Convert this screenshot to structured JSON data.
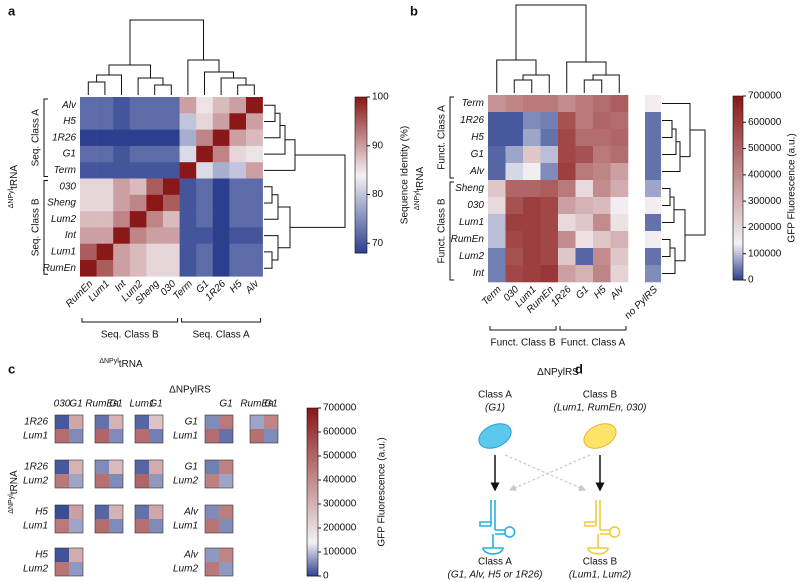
{
  "chart_data": [
    {
      "type": "heatmap",
      "panel": "a",
      "rows": [
        "Alv",
        "H5",
        "1R26",
        "G1",
        "Term",
        "030",
        "Sheng",
        "Lum2",
        "Int",
        "Lum1",
        "RumEn"
      ],
      "columns": [
        "RumEn",
        "Lum1",
        "Int",
        "Lum2",
        "Sheng",
        "030",
        "Term",
        "G1",
        "1R26",
        "H5",
        "Alv"
      ],
      "values": [
        [
          72,
          72,
          70,
          72,
          72,
          72,
          90,
          85,
          88,
          90,
          100
        ],
        [
          72,
          72,
          70,
          72,
          72,
          72,
          80,
          86,
          90,
          100,
          90
        ],
        [
          68,
          68,
          66,
          68,
          68,
          68,
          78,
          92,
          100,
          90,
          88
        ],
        [
          72,
          72,
          70,
          72,
          72,
          72,
          82,
          100,
          92,
          86,
          85
        ],
        [
          70,
          70,
          70,
          70,
          70,
          70,
          100,
          82,
          78,
          80,
          90
        ],
        [
          86,
          86,
          90,
          88,
          95,
          100,
          70,
          72,
          68,
          72,
          72
        ],
        [
          86,
          86,
          90,
          92,
          100,
          95,
          70,
          72,
          68,
          72,
          72
        ],
        [
          88,
          88,
          92,
          100,
          92,
          88,
          70,
          72,
          68,
          72,
          72
        ],
        [
          90,
          90,
          100,
          92,
          90,
          90,
          70,
          70,
          66,
          70,
          70
        ],
        [
          95,
          100,
          90,
          88,
          86,
          86,
          70,
          72,
          68,
          72,
          72
        ],
        [
          100,
          95,
          90,
          88,
          86,
          86,
          70,
          72,
          68,
          72,
          72
        ]
      ],
      "row_groups": [
        {
          "label": "Seq. Class A",
          "members": [
            "Alv",
            "H5",
            "1R26",
            "G1",
            "Term"
          ]
        },
        {
          "label": "Seq. Class B",
          "members": [
            "030",
            "Sheng",
            "Lum2",
            "Int",
            "Lum1",
            "RumEn"
          ]
        }
      ],
      "column_groups": [
        {
          "label": "Seq. Class B",
          "members": [
            "RumEn",
            "Lum1",
            "Int",
            "Lum2",
            "Sheng",
            "030"
          ]
        },
        {
          "label": "Seq. Class A",
          "members": [
            "Term",
            "G1",
            "1R26",
            "H5",
            "Alv"
          ]
        }
      ],
      "ylabel": {
        "sup": "ΔNPyl",
        "main": "tRNA"
      },
      "xlabel": {
        "sup": "ΔNPyl",
        "main": "tRNA"
      },
      "colorbar": {
        "label": "Sequence Identity (%)",
        "lim": [
          68,
          100
        ],
        "ticks": [
          70,
          80,
          90,
          100
        ],
        "colors": [
          [
            0,
            "#2b3f8e"
          ],
          [
            0.5,
            "#f3f1f4"
          ],
          [
            1,
            "#8a1818"
          ]
        ]
      }
    },
    {
      "type": "heatmap",
      "panel": "b",
      "rows": [
        "Term",
        "1R26",
        "H5",
        "G1",
        "Alv",
        "Sheng",
        "030",
        "Lum1",
        "RumEn",
        "Lum2",
        "Int"
      ],
      "columns": [
        "Term",
        "030",
        "Lum1",
        "RumEn",
        "1R26",
        "G1",
        "H5",
        "Alv"
      ],
      "values": [
        [
          380000,
          420000,
          450000,
          450000,
          400000,
          450000,
          480000,
          520000
        ],
        [
          20000,
          20000,
          60000,
          50000,
          550000,
          450000,
          500000,
          480000
        ],
        [
          20000,
          20000,
          80000,
          40000,
          580000,
          480000,
          480000,
          500000
        ],
        [
          30000,
          80000,
          250000,
          100000,
          580000,
          550000,
          450000,
          480000
        ],
        [
          30000,
          120000,
          150000,
          60000,
          600000,
          450000,
          420000,
          350000
        ],
        [
          250000,
          500000,
          500000,
          520000,
          450000,
          200000,
          400000,
          320000
        ],
        [
          200000,
          550000,
          600000,
          580000,
          350000,
          300000,
          280000,
          150000
        ],
        [
          100000,
          600000,
          600000,
          580000,
          200000,
          250000,
          400000,
          180000
        ],
        [
          100000,
          580000,
          600000,
          580000,
          400000,
          180000,
          250000,
          300000
        ],
        [
          50000,
          550000,
          600000,
          580000,
          250000,
          30000,
          400000,
          250000
        ],
        [
          50000,
          580000,
          600000,
          620000,
          350000,
          300000,
          420000,
          220000
        ]
      ],
      "control": {
        "label": "no PylRS",
        "values": [
          150000,
          40000,
          40000,
          40000,
          40000,
          80000,
          150000,
          40000,
          150000,
          40000,
          60000
        ]
      },
      "row_groups": [
        {
          "label": "Funct. Class A",
          "members": [
            "Term",
            "1R26",
            "H5",
            "G1",
            "Alv"
          ]
        },
        {
          "label": "Funct. Class B",
          "members": [
            "Sheng",
            "030",
            "Lum1",
            "RumEn",
            "Lum2",
            "Int"
          ]
        }
      ],
      "column_groups": [
        {
          "label": "Funct. Class B",
          "members": [
            "Term",
            "030",
            "Lum1",
            "RumEn"
          ]
        },
        {
          "label": "Funct. Class A",
          "members": [
            "1R26",
            "G1",
            "H5",
            "Alv"
          ]
        }
      ],
      "ylabel": {
        "sup": "ΔNPyl",
        "main": "tRNA"
      },
      "xlabel": {
        "sup": "",
        "main": "ΔNPylRS"
      },
      "colorbar": {
        "label": "GFP Fluorescence (a.u.)",
        "lim": [
          0,
          700000
        ],
        "ticks": [
          0,
          100000,
          200000,
          300000,
          400000,
          500000,
          600000,
          700000
        ],
        "colors": [
          [
            0,
            "#2b3f8e"
          ],
          [
            0.2,
            "#f3f1f4"
          ],
          [
            1,
            "#8a1818"
          ]
        ]
      }
    },
    {
      "type": "heatmap-grid",
      "panel": "c",
      "title": "ΔNPylRS",
      "ylabel": {
        "sup": "ΔNPyl",
        "main": "tRNA"
      },
      "sides": [
        {
          "rows": [
            [
              "1R26",
              "Lum1"
            ],
            [
              "1R26",
              "Lum2"
            ],
            [
              "H5",
              "Lum1"
            ],
            [
              "H5",
              "Lum2"
            ]
          ],
          "cols": [
            [
              "030",
              "G1"
            ],
            [
              "RumEn",
              "G1"
            ],
            [
              "Lum1",
              "G1"
            ]
          ],
          "cells": [
            [
              [
                [
                  20000,
                  330000
                ],
                [
                  480000,
                  60000
                ]
              ],
              [
                [
                  40000,
                  300000
                ],
                [
                  500000,
                  60000
                ]
              ],
              [
                [
                  30000,
                  260000
                ],
                [
                  480000,
                  50000
                ]
              ]
            ],
            [
              [
                [
                  20000,
                  300000
                ],
                [
                  450000,
                  80000
                ]
              ],
              [
                [
                  60000,
                  280000
                ],
                [
                  470000,
                  60000
                ]
              ],
              [
                [
                  30000,
                  320000
                ],
                [
                  500000,
                  70000
                ]
              ]
            ],
            [
              [
                [
                  10000,
                  350000
                ],
                [
                  450000,
                  80000
                ]
              ],
              [
                [
                  30000,
                  300000
                ],
                [
                  480000,
                  60000
                ]
              ],
              [
                [
                  40000,
                  330000
                ],
                [
                  470000,
                  60000
                ]
              ]
            ],
            [
              [
                [
                  15000,
                  320000
                ],
                [
                  460000,
                  70000
                ]
              ],
              null,
              null
            ]
          ]
        },
        {
          "rows": [
            [
              "G1",
              "Lum1"
            ],
            [
              "G1",
              "Lum2"
            ],
            [
              "Alv",
              "Lum1"
            ],
            [
              "Alv",
              "Lum2"
            ]
          ],
          "cols": [
            [
              null,
              "G1"
            ],
            [
              "RumEn",
              "G1"
            ]
          ],
          "cells": [
            [
              [
                [
                  60000,
                  450000
                ],
                [
                  480000,
                  40000
                ]
              ],
              [
                [
                  80000,
                  420000
                ],
                [
                  470000,
                  60000
                ]
              ]
            ],
            [
              [
                [
                  50000,
                  430000
                ],
                [
                  430000,
                  80000
                ]
              ],
              null
            ],
            [
              [
                [
                  60000,
                  440000
                ],
                [
                  460000,
                  60000
                ]
              ],
              null
            ],
            [
              [
                [
                  70000,
                  420000
                ],
                [
                  450000,
                  70000
                ]
              ],
              null
            ]
          ]
        }
      ],
      "colorbar": {
        "label": "GFP Fluorescence (a.u.)",
        "lim": [
          0,
          700000
        ],
        "ticks": [
          0,
          100000,
          200000,
          300000,
          400000,
          500000,
          600000,
          700000
        ],
        "colors": [
          [
            0,
            "#2b3f8e"
          ],
          [
            0.2,
            "#f3f1f4"
          ],
          [
            1,
            "#8a1818"
          ]
        ]
      }
    }
  ],
  "diagram": {
    "panel": "d",
    "nodes": [
      {
        "label": "Class A",
        "detail": "(G1)"
      },
      {
        "label": "Class B",
        "detail": "(Lum1, RumEn, 030)"
      },
      {
        "label": "Class A",
        "detail": "(G1, Alv, H5 or 1R26)"
      },
      {
        "label": "Class B",
        "detail": "(Lum1, Lum2)"
      }
    ]
  }
}
